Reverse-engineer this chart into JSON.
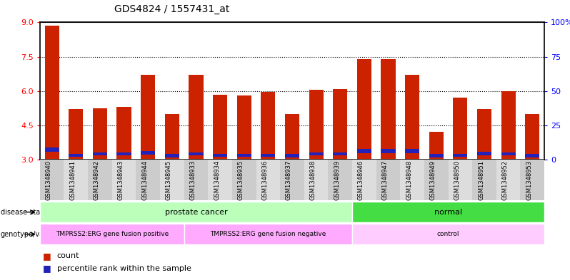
{
  "title": "GDS4824 / 1557431_at",
  "samples": [
    "GSM1348940",
    "GSM1348941",
    "GSM1348942",
    "GSM1348943",
    "GSM1348944",
    "GSM1348945",
    "GSM1348933",
    "GSM1348934",
    "GSM1348935",
    "GSM1348936",
    "GSM1348937",
    "GSM1348938",
    "GSM1348939",
    "GSM1348946",
    "GSM1348947",
    "GSM1348948",
    "GSM1348949",
    "GSM1348950",
    "GSM1348951",
    "GSM1348952",
    "GSM1348953"
  ],
  "red_values": [
    8.85,
    5.2,
    5.25,
    5.3,
    6.7,
    5.0,
    6.7,
    5.85,
    5.8,
    5.95,
    5.0,
    6.05,
    6.1,
    7.4,
    7.4,
    6.7,
    4.2,
    5.7,
    5.2,
    6.0,
    5.0
  ],
  "blue_bottoms": [
    3.35,
    3.12,
    3.18,
    3.18,
    3.22,
    3.1,
    3.18,
    3.12,
    3.12,
    3.12,
    3.1,
    3.18,
    3.18,
    3.28,
    3.28,
    3.28,
    3.1,
    3.12,
    3.2,
    3.18,
    3.1
  ],
  "blue_heights": [
    0.18,
    0.14,
    0.14,
    0.14,
    0.14,
    0.14,
    0.14,
    0.14,
    0.14,
    0.14,
    0.14,
    0.14,
    0.14,
    0.18,
    0.18,
    0.18,
    0.14,
    0.14,
    0.14,
    0.14,
    0.14
  ],
  "ylim": [
    3.0,
    9.0
  ],
  "yticks_left": [
    3.0,
    4.5,
    6.0,
    7.5,
    9.0
  ],
  "yticks_right": [
    0,
    25,
    50,
    75,
    100
  ],
  "bar_color": "#cc2200",
  "blue_color": "#2222bb",
  "disease_state_groups": [
    {
      "label": "prostate cancer",
      "start": 0,
      "end": 13,
      "color": "#bbffbb"
    },
    {
      "label": "normal",
      "start": 13,
      "end": 21,
      "color": "#44dd44"
    }
  ],
  "genotype_groups": [
    {
      "label": "TMPRSS2:ERG gene fusion positive",
      "start": 0,
      "end": 6,
      "color": "#ffaaff"
    },
    {
      "label": "TMPRSS2:ERG gene fusion negative",
      "start": 6,
      "end": 13,
      "color": "#ffaaff"
    },
    {
      "label": "control",
      "start": 13,
      "end": 21,
      "color": "#ffccff"
    }
  ],
  "legend_count_color": "#cc2200",
  "legend_blue_color": "#2222bb",
  "legend_count_label": "count",
  "legend_blue_label": "percentile rank within the sample",
  "bar_bottom": 3.0
}
